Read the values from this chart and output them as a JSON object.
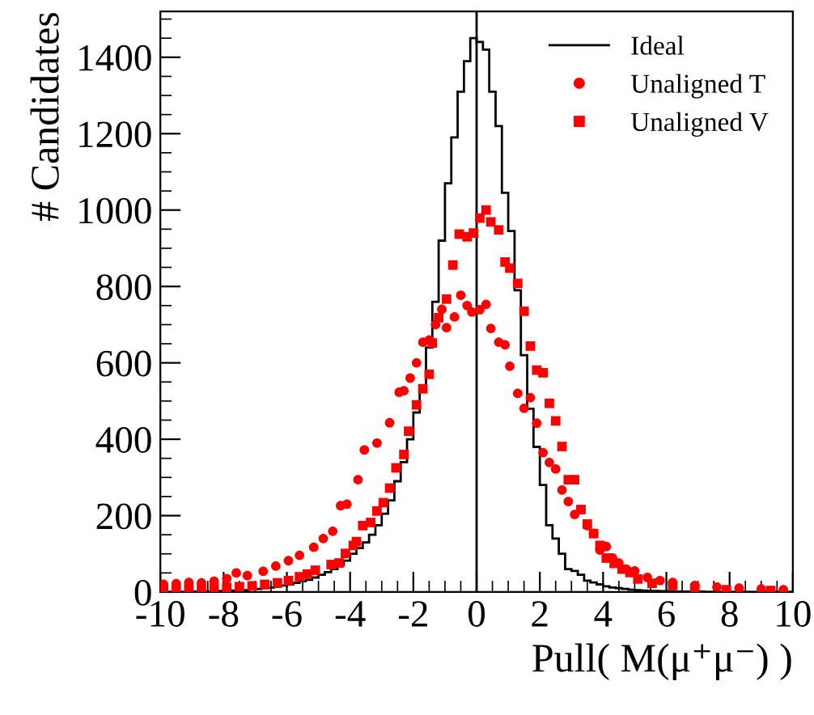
{
  "chart_data": {
    "type": "histogram",
    "xlabel": "Pull( M(μ⁺μ⁻) )",
    "ylabel": "# Candidates",
    "xlim": [
      -10,
      10
    ],
    "xticks": [
      -10,
      -8,
      -6,
      -4,
      -2,
      0,
      2,
      4,
      6,
      8,
      10
    ],
    "ylim": [
      0,
      1520
    ],
    "yticks": [
      0,
      200,
      400,
      600,
      800,
      1000,
      1200,
      1400
    ],
    "grid": false,
    "legend": "top right",
    "ref_lines": [
      {
        "axis": "x",
        "value": 0,
        "color": "#000000",
        "line_style": "solid"
      }
    ],
    "series": [
      {
        "name": "Ideal",
        "color": "#000000",
        "line_style": "solid",
        "bins": [
          -10.0,
          -9.8,
          -9.6,
          -9.4,
          -9.2,
          -9.0,
          -8.8,
          -8.6,
          -8.4,
          -8.2,
          -8.0,
          -7.8,
          -7.6,
          -7.4,
          -7.2,
          -7.0,
          -6.8,
          -6.6,
          -6.4,
          -6.2,
          -6.0,
          -5.8,
          -5.6,
          -5.4,
          -5.2,
          -5.0,
          -4.8,
          -4.6,
          -4.4,
          -4.2,
          -4.0,
          -3.8,
          -3.6,
          -3.4,
          -3.2,
          -3.0,
          -2.8,
          -2.6,
          -2.4,
          -2.2,
          -2.0,
          -1.8,
          -1.6,
          -1.4,
          -1.2,
          -1.0,
          -0.8,
          -0.6,
          -0.4,
          -0.2,
          0.0,
          0.2,
          0.4,
          0.6,
          0.8,
          1.0,
          1.2,
          1.4,
          1.6,
          1.8,
          2.0,
          2.2,
          2.4,
          2.6,
          2.8,
          3.0,
          3.2,
          3.4,
          3.6,
          3.8,
          4.0,
          4.2,
          4.4,
          4.6,
          4.8,
          5.0,
          5.2,
          5.4,
          5.6,
          5.8,
          6.0,
          6.2,
          6.4,
          6.6,
          6.8,
          7.0,
          7.2,
          7.4,
          7.6,
          7.8,
          8.0,
          8.2,
          8.4,
          8.6,
          8.8,
          9.0,
          9.2,
          9.4,
          9.6,
          9.8,
          10.0
        ],
        "values": [
          0,
          0,
          1,
          0,
          1,
          1,
          2,
          1,
          2,
          3,
          3,
          4,
          5,
          5,
          7,
          8,
          10,
          12,
          14,
          17,
          20,
          24,
          28,
          32,
          38,
          45,
          52,
          60,
          70,
          82,
          100,
          115,
          130,
          150,
          175,
          205,
          240,
          290,
          340,
          400,
          470,
          540,
          640,
          760,
          920,
          1070,
          1190,
          1310,
          1390,
          1450,
          1440,
          1420,
          1310,
          1220,
          1045,
          945,
          790,
          620,
          480,
          380,
          280,
          175,
          140,
          100,
          60,
          55,
          45,
          30,
          25,
          20,
          15,
          12,
          10,
          8,
          6,
          5,
          4,
          3,
          3,
          2,
          2,
          1,
          1,
          1,
          0,
          1,
          0,
          0,
          0,
          0,
          0,
          0,
          0,
          0,
          0,
          0,
          0,
          0,
          0,
          0
        ]
      },
      {
        "name": "Unaligned T",
        "type": "scatter",
        "marker": "circle",
        "color": "#ff0000",
        "x": [
          -9.9,
          -9.5,
          -9.1,
          -8.7,
          -8.3,
          -7.9,
          -7.6,
          -7.25,
          -6.75,
          -6.35,
          -5.95,
          -5.6,
          -5.15,
          -4.85,
          -4.55,
          -4.3,
          -4.1,
          -3.75,
          -3.55,
          -3.15,
          -2.75,
          -2.45,
          -2.3,
          -2.1,
          -1.9,
          -1.7,
          -1.5,
          -1.3,
          -1.1,
          -0.95,
          -0.7,
          -0.5,
          -0.3,
          -0.15,
          0.1,
          0.3,
          0.45,
          0.7,
          0.9,
          1.05,
          1.3,
          1.5,
          1.7,
          1.9,
          2.1,
          2.3,
          2.5,
          2.7,
          2.9,
          3.1,
          3.3,
          3.5,
          3.7,
          3.9,
          4.1,
          4.3,
          4.5,
          4.75,
          5.0,
          5.4,
          5.8,
          6.2,
          6.9,
          7.6,
          8.3,
          9.0,
          9.7
        ],
        "values": [
          20,
          22,
          25,
          24,
          28,
          35,
          50,
          43,
          54,
          68,
          82,
          96,
          117,
          140,
          159,
          226,
          230,
          294,
          372,
          390,
          443,
          523,
          527,
          560,
          600,
          654,
          660,
          700,
          740,
          692,
          720,
          777,
          750,
          733,
          739,
          753,
          690,
          654,
          647,
          591,
          520,
          481,
          509,
          442,
          365,
          339,
          322,
          267,
          237,
          203,
          216,
          174,
          153,
          110,
          119,
          89,
          76,
          59,
          55,
          38,
          30,
          25,
          17,
          13,
          10,
          8,
          6
        ]
      },
      {
        "name": "Unaligned V",
        "type": "scatter",
        "marker": "square",
        "color": "#ff0000",
        "x": [
          -9.9,
          -9.5,
          -9.1,
          -8.7,
          -8.3,
          -7.9,
          -7.5,
          -7.1,
          -6.7,
          -6.3,
          -5.95,
          -5.6,
          -5.35,
          -5.1,
          -4.6,
          -4.35,
          -4.15,
          -3.9,
          -3.8,
          -3.6,
          -3.35,
          -3.15,
          -2.95,
          -2.75,
          -2.55,
          -2.3,
          -2.15,
          -1.9,
          -1.7,
          -1.5,
          -1.4,
          -1.2,
          -0.95,
          -0.75,
          -0.55,
          -0.3,
          -0.1,
          0.1,
          0.3,
          0.45,
          0.7,
          0.9,
          1.05,
          1.3,
          1.5,
          1.7,
          1.9,
          2.1,
          2.3,
          2.5,
          2.7,
          2.9,
          3.1,
          3.3,
          3.5,
          3.7,
          3.9,
          4.1,
          4.35,
          4.6,
          4.85,
          5.1,
          5.55,
          6.2,
          6.9,
          7.9,
          9.3
        ],
        "values": [
          5,
          6,
          7,
          8,
          10,
          12,
          14,
          16,
          20,
          24,
          30,
          40,
          47,
          57,
          72,
          76,
          101,
          122,
          132,
          174,
          182,
          212,
          234,
          272,
          325,
          360,
          421,
          490,
          532,
          570,
          652,
          718,
          767,
          856,
          937,
          930,
          940,
          979,
          1000,
          969,
          948,
          864,
          848,
          808,
          735,
          644,
          581,
          574,
          494,
          448,
          381,
          294,
          294,
          216,
          178,
          153,
          122,
          89,
          75,
          60,
          51,
          34,
          23,
          17,
          10,
          6,
          4
        ]
      }
    ]
  }
}
